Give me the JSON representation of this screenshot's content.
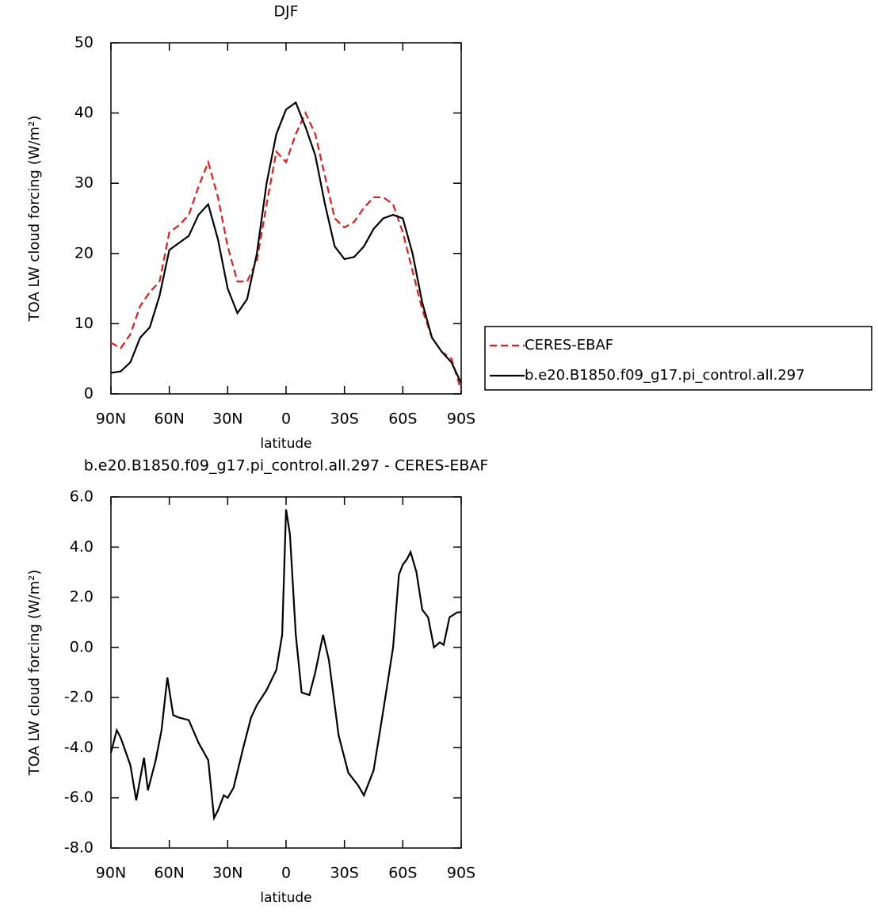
{
  "chart_data": [
    {
      "type": "line",
      "title": "DJF",
      "xlabel": "latitude",
      "ylabel": "TOA LW cloud forcing (W/m²)",
      "x": [
        90,
        85,
        80,
        75,
        70,
        65,
        60,
        55,
        50,
        45,
        40,
        35,
        30,
        25,
        20,
        15,
        10,
        5,
        0,
        -5,
        -10,
        -15,
        -20,
        -25,
        -30,
        -35,
        -40,
        -45,
        -50,
        -55,
        -60,
        -65,
        -70,
        -75,
        -80,
        -85,
        -90
      ],
      "series": [
        {
          "name": "CERES-EBAF",
          "color": "#e41a1c",
          "linestyle": "dashed",
          "values": [
            7.3,
            6.5,
            8.5,
            12.5,
            14.5,
            16,
            23,
            24,
            25.5,
            29.5,
            33,
            28,
            21,
            16,
            16,
            19,
            27,
            34.5,
            33,
            37,
            40,
            37,
            31,
            25,
            23.7,
            24.5,
            26.5,
            28,
            28,
            27,
            23,
            17.5,
            12,
            8,
            6,
            5,
            0.5
          ]
        },
        {
          "name": "b.e20.B1850.f09_g17.pi_control.all.297",
          "color": "#000000",
          "linestyle": "solid",
          "values": [
            3,
            3.2,
            4.5,
            8,
            9.5,
            14,
            20.5,
            21.5,
            22.5,
            25.5,
            27,
            22,
            15,
            11.5,
            13.5,
            20,
            30,
            37,
            40.5,
            41.5,
            38,
            34,
            27,
            21,
            19.2,
            19.5,
            21,
            23.5,
            25,
            25.5,
            25,
            20,
            13,
            8,
            6,
            4.5,
            1.5
          ]
        }
      ],
      "xlim": [
        90,
        -90
      ],
      "xticks": [
        {
          "value": 90,
          "label": "90N"
        },
        {
          "value": 60,
          "label": "60N"
        },
        {
          "value": 30,
          "label": "30N"
        },
        0,
        {
          "value": -30,
          "label": "30S"
        },
        {
          "value": -60,
          "label": "60S"
        },
        {
          "value": -90,
          "label": "90S"
        }
      ],
      "ylim": [
        0,
        50
      ],
      "yticks": [
        0,
        10,
        20,
        30,
        40,
        50
      ],
      "legend": "right"
    },
    {
      "type": "line",
      "title": "b.e20.B1850.f09_g17.pi_control.all.297 - CERES-EBAF",
      "xlabel": "latitude",
      "ylabel": "TOA LW cloud forcing (W/m²)",
      "x": [
        90,
        87,
        85,
        80,
        77,
        73,
        71,
        67,
        64,
        61,
        58,
        55,
        50,
        45,
        40,
        37,
        35,
        32,
        30,
        27,
        22,
        18,
        15,
        10,
        5,
        2,
        0,
        -2,
        -5,
        -8,
        -12,
        -15,
        -19,
        -22,
        -27,
        -32,
        -37,
        -40,
        -45,
        -50,
        -55,
        -58,
        -60,
        -62,
        -64,
        -67,
        -70,
        -73,
        -76,
        -79,
        -81,
        -84,
        -88,
        -90
      ],
      "series": [
        {
          "color": "#000000",
          "linestyle": "solid",
          "values": [
            -4.2,
            -3.3,
            -3.6,
            -4.7,
            -6.1,
            -4.4,
            -5.7,
            -4.5,
            -3.3,
            -1.2,
            -2.7,
            -2.8,
            -2.9,
            -3.8,
            -4.5,
            -6.8,
            -6.5,
            -5.9,
            -6.0,
            -5.6,
            -4.0,
            -2.8,
            -2.3,
            -1.7,
            -0.9,
            0.5,
            5.5,
            4.5,
            0.5,
            -1.8,
            -1.9,
            -1.0,
            0.5,
            -0.5,
            -3.5,
            -5.0,
            -5.5,
            -5.9,
            -4.9,
            -2.5,
            0.0,
            2.9,
            3.3,
            3.5,
            3.8,
            3.0,
            1.5,
            1.2,
            0.0,
            0.2,
            0.1,
            1.2,
            1.4,
            1.4
          ]
        }
      ],
      "xlim": [
        90,
        -90
      ],
      "xticks": [
        {
          "value": 90,
          "label": "90N"
        },
        {
          "value": 60,
          "label": "60N"
        },
        {
          "value": 30,
          "label": "30N"
        },
        0,
        {
          "value": -30,
          "label": "30S"
        },
        {
          "value": -60,
          "label": "60S"
        },
        {
          "value": -90,
          "label": "90S"
        }
      ],
      "ylim": [
        -8,
        6
      ],
      "yticks": [
        {
          "value": -8,
          "label": "-8.0"
        },
        {
          "value": -6,
          "label": "-6.0"
        },
        {
          "value": -4,
          "label": "-4.0"
        },
        {
          "value": -2,
          "label": "-2.0"
        },
        {
          "value": 0,
          "label": "0.0"
        },
        {
          "value": 2,
          "label": "2.0"
        },
        {
          "value": 4,
          "label": "4.0"
        },
        {
          "value": 6,
          "label": "6.0"
        }
      ]
    }
  ]
}
